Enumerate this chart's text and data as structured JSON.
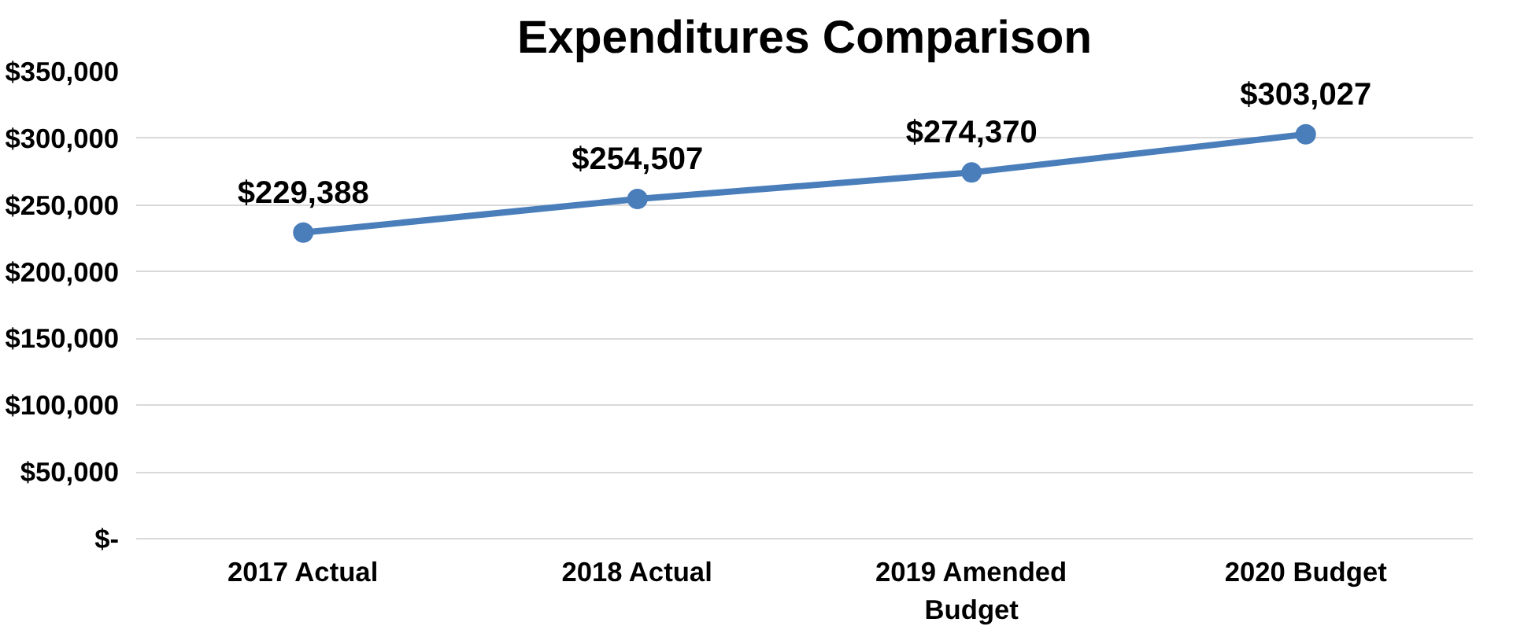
{
  "chart_data": {
    "type": "line",
    "title": "Expenditures Comparison",
    "categories": [
      "2017 Actual",
      "2018 Actual",
      "2019 Amended Budget",
      "2020 Budget"
    ],
    "series": [
      {
        "color": "#4a7ebb",
        "values": [
          229388,
          254507,
          274370,
          303027
        ],
        "value_labels": [
          "$229,388",
          "$254,507",
          "$274,370",
          "$303,027"
        ]
      }
    ],
    "ylim": [
      0,
      350000
    ],
    "yticks": [
      {
        "value": 0,
        "label": "$-"
      },
      {
        "value": 50000,
        "label": "$50,000"
      },
      {
        "value": 100000,
        "label": "$100,000"
      },
      {
        "value": 150000,
        "label": "$150,000"
      },
      {
        "value": 200000,
        "label": "$200,000"
      },
      {
        "value": 250000,
        "label": "$250,000"
      },
      {
        "value": 300000,
        "label": "$300,000"
      },
      {
        "value": 350000,
        "label": "$350,000"
      }
    ],
    "grid": "y",
    "marker": "circle",
    "line_style": "solid"
  }
}
